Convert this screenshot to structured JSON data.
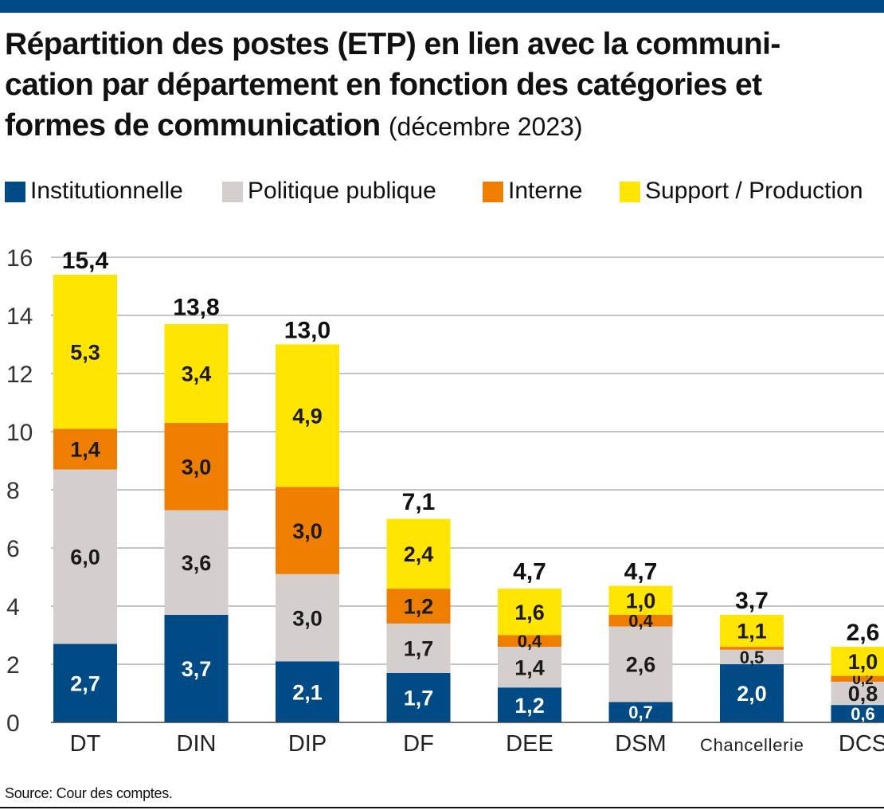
{
  "title": {
    "main": "Répartition des postes (ETP) en lien avec la communication par département en fonction des catégories et formes de communication",
    "main_line1": "Répartition des postes (ETP) en lien avec la communi-",
    "main_line2": "cation par département en fonction des catégories et",
    "main_line3": "formes de communication",
    "subtitle": "(décembre 2023)"
  },
  "colors": {
    "institutionnelle": "#004a86",
    "politique": "#d4cfcc",
    "interne": "#ee7d00",
    "support": "#ffe500",
    "topbar": "#004a86"
  },
  "chart_data": {
    "type": "bar",
    "stacked": true,
    "title": "Répartition des postes (ETP) en lien avec la communication par département en fonction des catégories et formes de communication (décembre 2023)",
    "categories": [
      "DT",
      "DIN",
      "DIP",
      "DF",
      "DEE",
      "DSM",
      "Chancellerie",
      "DCS"
    ],
    "series": [
      {
        "name": "Institutionnelle",
        "color": "#004a86",
        "values": [
          2.7,
          3.7,
          2.1,
          1.7,
          1.2,
          0.7,
          2.0,
          0.6
        ],
        "labels": [
          "2,7",
          "3,7",
          "2,1",
          "1,7",
          "1,2",
          "0,7",
          "2,0",
          "0,6"
        ]
      },
      {
        "name": "Politique publique",
        "color": "#d4cfcc",
        "values": [
          6.0,
          3.6,
          3.0,
          1.7,
          1.4,
          2.6,
          0.5,
          0.8
        ],
        "labels": [
          "6,0",
          "3,6",
          "3,0",
          "1,7",
          "1,4",
          "2,6",
          "0,5",
          "0,8"
        ]
      },
      {
        "name": "Interne",
        "color": "#ee7d00",
        "values": [
          1.4,
          3.0,
          3.0,
          1.2,
          0.4,
          0.4,
          0.1,
          0.2
        ],
        "labels": [
          "1,4",
          "3,0",
          "3,0",
          "1,2",
          "0,4",
          "0,4",
          "",
          "0,2"
        ]
      },
      {
        "name": "Support / Production",
        "color": "#ffe500",
        "values": [
          5.3,
          3.4,
          4.9,
          2.4,
          1.6,
          1.0,
          1.1,
          1.0
        ],
        "labels": [
          "5,3",
          "3,4",
          "4,9",
          "2,4",
          "1,6",
          "1,0",
          "1,1",
          "1,0"
        ]
      }
    ],
    "totals": [
      15.4,
      13.8,
      13.0,
      7.1,
      4.7,
      4.7,
      3.7,
      2.6
    ],
    "total_labels": [
      "15,4",
      "13,8",
      "13,0",
      "7,1",
      "4,7",
      "4,7",
      "3,7",
      "2,6"
    ],
    "yticks": [
      0,
      2,
      4,
      6,
      8,
      10,
      12,
      14,
      16
    ],
    "ylim": [
      0,
      16
    ],
    "xlabel": "",
    "ylabel": "",
    "grid": true,
    "legend_position": "top"
  },
  "source": "Source: Cour des comptes."
}
